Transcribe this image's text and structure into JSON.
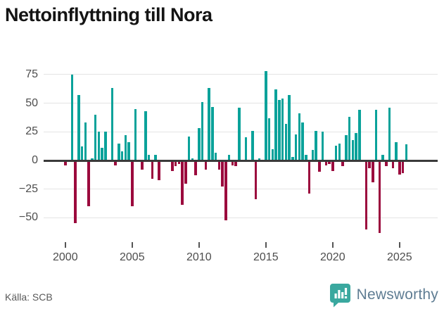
{
  "title": "Nettoinflyttning till Nora",
  "footer": {
    "source": "Källa: SCB",
    "brand": "Newsworthy"
  },
  "colors": {
    "positive_bar": "#0aa29a",
    "negative_bar": "#9b0a3d",
    "title_text": "#141414",
    "axis_label": "#4d4d4d",
    "zero_line": "#3a3a3a",
    "gridline": "#e4e4e4",
    "source_text": "#595959",
    "brand_text": "#5f7d93",
    "logo_teal": "#3aa89f"
  },
  "chart_data": {
    "type": "bar",
    "title": "Nettoinflyttning till Nora",
    "frequency": "quarterly",
    "x_start": "2000 Q1",
    "x_end": "2025 Q3",
    "xlabel": "",
    "ylabel": "",
    "ylim": [
      -68,
      85
    ],
    "grid": "horizontal",
    "legend": "none",
    "x_tick_labels": [
      "2000",
      "2005",
      "2010",
      "2015",
      "2020",
      "2025"
    ],
    "y_ticks": [
      75,
      50,
      25,
      0,
      -25,
      -50
    ],
    "values": [
      -4,
      0,
      75,
      -55,
      57,
      12,
      33,
      -40,
      2,
      40,
      25,
      11,
      25,
      0,
      63,
      -4,
      15,
      8,
      22,
      16,
      -40,
      45,
      0,
      -8,
      43,
      5,
      -16,
      5,
      -17,
      0,
      0,
      0,
      -9,
      -5,
      -3,
      -39,
      -20,
      21,
      2,
      -13,
      28,
      51,
      -8,
      63,
      47,
      7,
      -8,
      -23,
      -52,
      5,
      -4,
      -5,
      46,
      0,
      20,
      0,
      26,
      -34,
      2,
      0,
      78,
      37,
      10,
      62,
      53,
      54,
      32,
      57,
      3,
      23,
      41,
      33,
      5,
      -29,
      9,
      26,
      -10,
      25,
      -4,
      -3,
      -9,
      13,
      15,
      -5,
      22,
      38,
      18,
      24,
      44,
      0,
      -60,
      -7,
      -19,
      44,
      -63,
      5,
      -5,
      46,
      -7,
      16,
      -12,
      -11,
      14
    ]
  }
}
